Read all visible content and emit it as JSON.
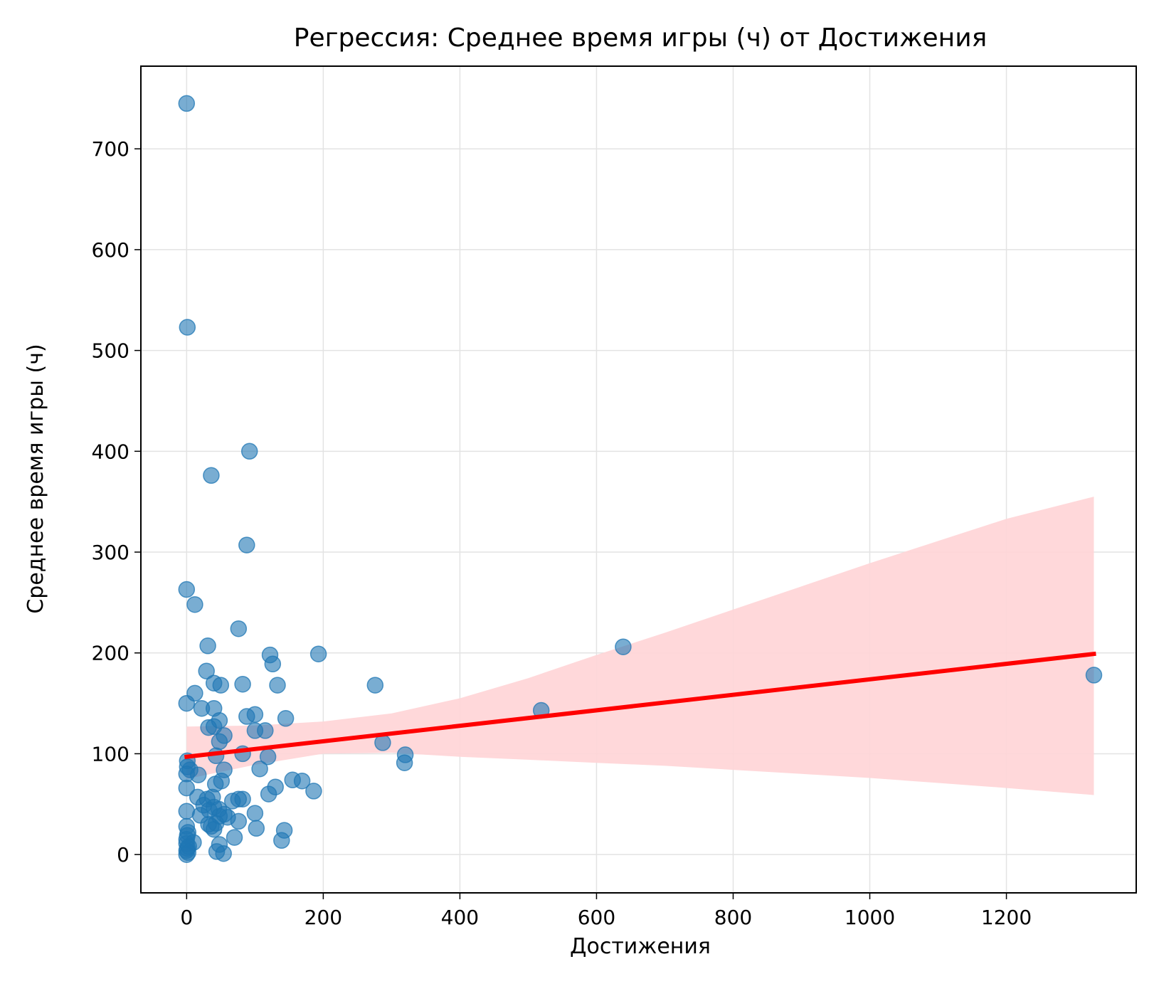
{
  "chart_data": {
    "type": "scatter",
    "title": "Регрессия: Среднее время игры (ч) от Достижения",
    "xlabel": "Достижения",
    "ylabel": "Среднее время игры (ч)",
    "xlim": [
      -67,
      1390
    ],
    "ylim": [
      -38,
      782
    ],
    "x_ticks": [
      0,
      200,
      400,
      600,
      800,
      1000,
      1200
    ],
    "y_ticks": [
      0,
      100,
      200,
      300,
      400,
      500,
      600,
      700
    ],
    "grid": true,
    "colors": {
      "points": "#1f77b4",
      "regression_line": "#ff0000",
      "confidence_band": "#ffd4d6",
      "grid": "#e3e3e3"
    },
    "regression": {
      "x": [
        0,
        1328
      ],
      "y": [
        97,
        199
      ]
    },
    "confidence_band": {
      "x": [
        0,
        100,
        200,
        300,
        400,
        500,
        600,
        700,
        800,
        900,
        1000,
        1100,
        1200,
        1328
      ],
      "upper": [
        127,
        128,
        132,
        140,
        155,
        175,
        198,
        220,
        243,
        266,
        289,
        311,
        333,
        355
      ],
      "lower": [
        75,
        89,
        100,
        101,
        97,
        94,
        91,
        88,
        84,
        80,
        76,
        71,
        66,
        59
      ]
    },
    "points": [
      {
        "x": 0,
        "y": 745
      },
      {
        "x": 1,
        "y": 523
      },
      {
        "x": 92,
        "y": 400
      },
      {
        "x": 36,
        "y": 376
      },
      {
        "x": 88,
        "y": 307
      },
      {
        "x": 0,
        "y": 263
      },
      {
        "x": 12,
        "y": 248
      },
      {
        "x": 76,
        "y": 224
      },
      {
        "x": 31,
        "y": 207
      },
      {
        "x": 639,
        "y": 206
      },
      {
        "x": 193,
        "y": 199
      },
      {
        "x": 122,
        "y": 198
      },
      {
        "x": 126,
        "y": 189
      },
      {
        "x": 29,
        "y": 182
      },
      {
        "x": 1328,
        "y": 178
      },
      {
        "x": 40,
        "y": 170
      },
      {
        "x": 50,
        "y": 168
      },
      {
        "x": 82,
        "y": 169
      },
      {
        "x": 276,
        "y": 168
      },
      {
        "x": 133,
        "y": 168
      },
      {
        "x": 12,
        "y": 160
      },
      {
        "x": 0,
        "y": 150
      },
      {
        "x": 22,
        "y": 145
      },
      {
        "x": 40,
        "y": 145
      },
      {
        "x": 519,
        "y": 143
      },
      {
        "x": 88,
        "y": 137
      },
      {
        "x": 100,
        "y": 139
      },
      {
        "x": 145,
        "y": 135
      },
      {
        "x": 48,
        "y": 133
      },
      {
        "x": 32,
        "y": 126
      },
      {
        "x": 40,
        "y": 127
      },
      {
        "x": 100,
        "y": 123
      },
      {
        "x": 115,
        "y": 123
      },
      {
        "x": 55,
        "y": 118
      },
      {
        "x": 48,
        "y": 112
      },
      {
        "x": 287,
        "y": 111
      },
      {
        "x": 82,
        "y": 100
      },
      {
        "x": 320,
        "y": 99
      },
      {
        "x": 43,
        "y": 98
      },
      {
        "x": 119,
        "y": 97
      },
      {
        "x": 319,
        "y": 91
      },
      {
        "x": 1,
        "y": 93
      },
      {
        "x": 1,
        "y": 87
      },
      {
        "x": 5,
        "y": 84
      },
      {
        "x": 0,
        "y": 80
      },
      {
        "x": 17,
        "y": 79
      },
      {
        "x": 55,
        "y": 84
      },
      {
        "x": 107,
        "y": 85
      },
      {
        "x": 155,
        "y": 74
      },
      {
        "x": 169,
        "y": 73
      },
      {
        "x": 51,
        "y": 73
      },
      {
        "x": 42,
        "y": 70
      },
      {
        "x": 130,
        "y": 67
      },
      {
        "x": 0,
        "y": 66
      },
      {
        "x": 186,
        "y": 63
      },
      {
        "x": 120,
        "y": 60
      },
      {
        "x": 16,
        "y": 57
      },
      {
        "x": 30,
        "y": 55
      },
      {
        "x": 38,
        "y": 57
      },
      {
        "x": 76,
        "y": 55
      },
      {
        "x": 82,
        "y": 55
      },
      {
        "x": 67,
        "y": 53
      },
      {
        "x": 25,
        "y": 49
      },
      {
        "x": 40,
        "y": 47
      },
      {
        "x": 33,
        "y": 44
      },
      {
        "x": 47,
        "y": 45
      },
      {
        "x": 0,
        "y": 43
      },
      {
        "x": 100,
        "y": 41
      },
      {
        "x": 20,
        "y": 39
      },
      {
        "x": 48,
        "y": 38
      },
      {
        "x": 60,
        "y": 37
      },
      {
        "x": 76,
        "y": 33
      },
      {
        "x": 43,
        "y": 31
      },
      {
        "x": 32,
        "y": 30
      },
      {
        "x": 0,
        "y": 28
      },
      {
        "x": 102,
        "y": 26
      },
      {
        "x": 40,
        "y": 25
      },
      {
        "x": 143,
        "y": 24
      },
      {
        "x": 2,
        "y": 22
      },
      {
        "x": 1,
        "y": 19
      },
      {
        "x": 70,
        "y": 17
      },
      {
        "x": 0,
        "y": 15
      },
      {
        "x": 139,
        "y": 14
      },
      {
        "x": 10,
        "y": 12
      },
      {
        "x": 0,
        "y": 11
      },
      {
        "x": 48,
        "y": 10
      },
      {
        "x": 3,
        "y": 8
      },
      {
        "x": 1,
        "y": 6
      },
      {
        "x": 0,
        "y": 4
      },
      {
        "x": 44,
        "y": 3
      },
      {
        "x": 2,
        "y": 2
      },
      {
        "x": 54,
        "y": 1
      },
      {
        "x": 0,
        "y": 0
      },
      {
        "x": 36,
        "y": 28
      },
      {
        "x": 55,
        "y": 40
      }
    ]
  }
}
